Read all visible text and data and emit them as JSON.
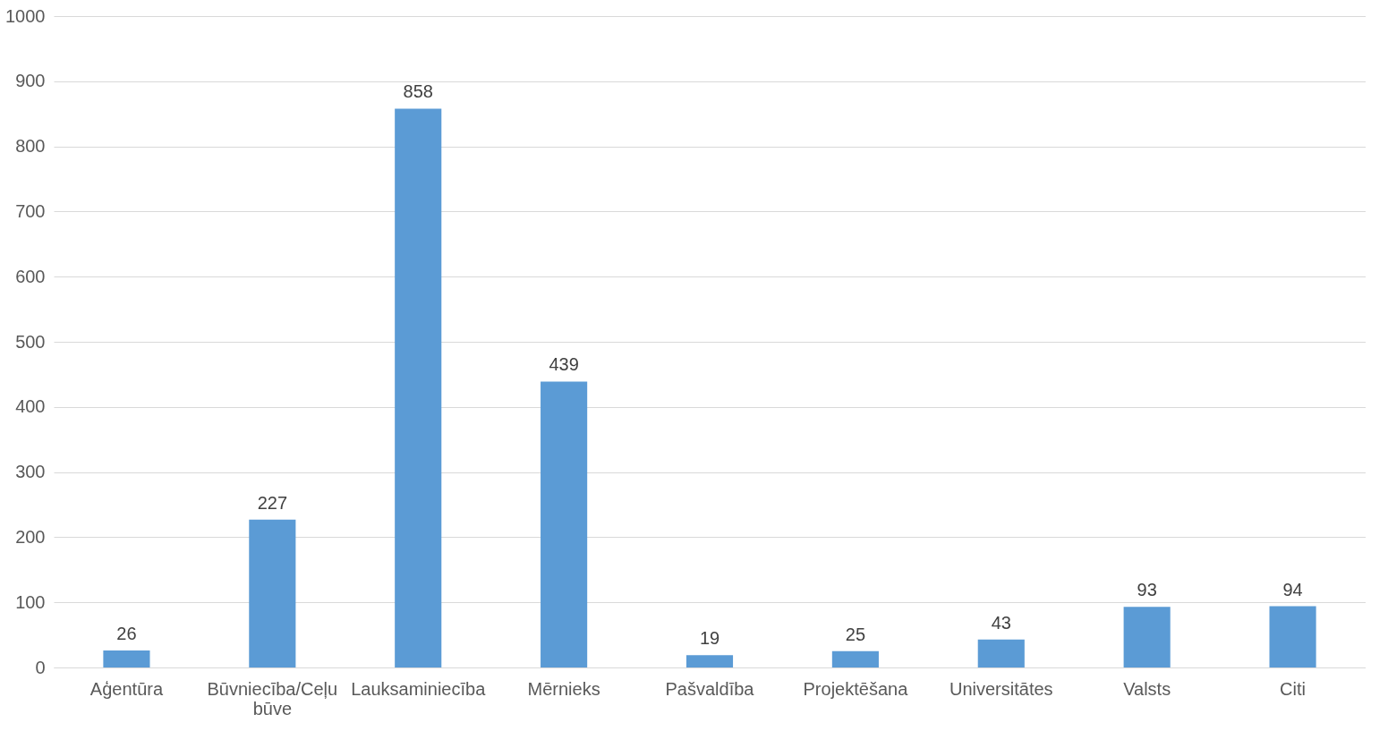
{
  "chart_data": {
    "type": "bar",
    "categories": [
      "Aģentūra",
      "Būvniecība/Ceļu būve",
      "Lauksaminiecība",
      "Mērnieks",
      "Pašvaldība",
      "Projektēšana",
      "Universitātes",
      "Valsts",
      "Citi"
    ],
    "values": [
      26,
      227,
      858,
      439,
      19,
      25,
      43,
      93,
      94
    ],
    "color": "#5b9bd5",
    "ylim": [
      0,
      1000
    ],
    "yticks": [
      0,
      100,
      200,
      300,
      400,
      500,
      600,
      700,
      800,
      900,
      1000
    ],
    "grid": "y",
    "data_labels": true
  }
}
